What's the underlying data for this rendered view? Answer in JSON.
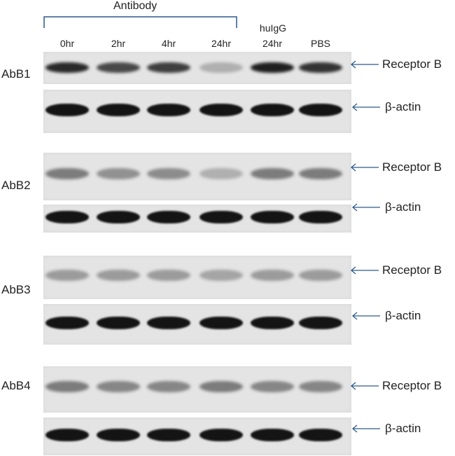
{
  "header": {
    "group_label": "Antibody",
    "lanes": [
      "0hr",
      "2hr",
      "4hr",
      "24hr",
      "24hr",
      "PBS"
    ],
    "control_label": "huIgG"
  },
  "blots": [
    {
      "name": "AbB1",
      "target": "Receptor B",
      "loading": "β-actin",
      "target_intensity": [
        0.9,
        0.75,
        0.8,
        0.25,
        0.95,
        0.85
      ],
      "loading_intensity": [
        1,
        1,
        1,
        1,
        1,
        1
      ]
    },
    {
      "name": "AbB2",
      "target": "Receptor B",
      "loading": "β-actin",
      "target_intensity": [
        0.5,
        0.4,
        0.42,
        0.25,
        0.5,
        0.5
      ],
      "loading_intensity": [
        1,
        1,
        1,
        1,
        1,
        1
      ]
    },
    {
      "name": "AbB3",
      "target": "Receptor B",
      "loading": "β-actin",
      "target_intensity": [
        0.35,
        0.35,
        0.35,
        0.3,
        0.35,
        0.35
      ],
      "loading_intensity": [
        1,
        1,
        1,
        1,
        1,
        1
      ]
    },
    {
      "name": "AbB4",
      "target": "Receptor B",
      "loading": "β-actin",
      "target_intensity": [
        0.5,
        0.45,
        0.45,
        0.5,
        0.45,
        0.45
      ],
      "loading_intensity": [
        1,
        1,
        1,
        1,
        1,
        1
      ]
    }
  ],
  "colors": {
    "bracket": "#2c5a8a",
    "arrow": "#2c5a8a",
    "band": "#1a1a1a",
    "membrane": "#e4e4e4"
  }
}
